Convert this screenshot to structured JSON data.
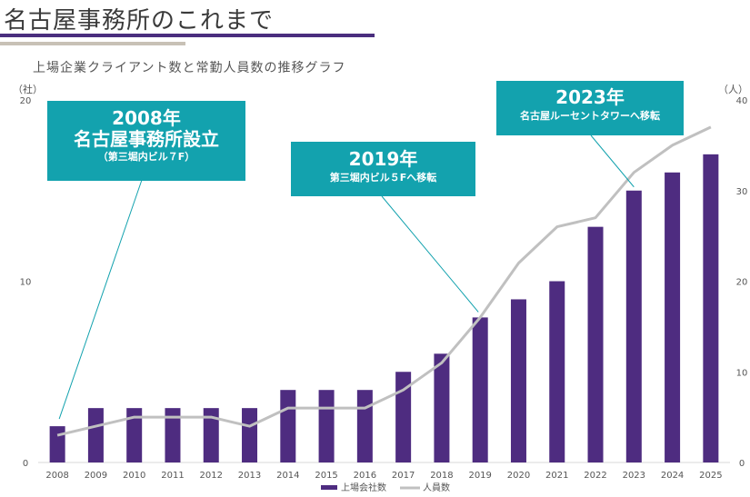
{
  "page": {
    "title": "名古屋事務所のこれまで",
    "subtitle": "上場企業クライアント数と常勤人員数の推移グラフ",
    "left_unit": "（社）",
    "right_unit": "（人）"
  },
  "annotations": [
    {
      "year": "2008年",
      "line1": "名古屋事務所設立",
      "line2": "（第三堀内ビル７F）"
    },
    {
      "year": "2019年",
      "line1": "第三堀内ビル５Fへ移転",
      "line2": ""
    },
    {
      "year": "2023年",
      "line1": "名古屋ルーセントタワーへ移転",
      "line2": ""
    }
  ],
  "colors": {
    "bar": "#4e2c80",
    "line": "#c0c0c0",
    "annotation_bg": "#13a2ae",
    "annotation_line": "#13a2ae",
    "title_bar": "#4a2e7e",
    "title_bar_sub": "#c8c1b6"
  },
  "chart_data": {
    "type": "bar",
    "categories": [
      "2008",
      "2009",
      "2010",
      "2011",
      "2012",
      "2013",
      "2014",
      "2015",
      "2016",
      "2017",
      "2018",
      "2019",
      "2020",
      "2021",
      "2022",
      "2023",
      "2024",
      "2025"
    ],
    "series": [
      {
        "name": "上場会社数",
        "type": "bar",
        "axis": "left",
        "values": [
          2,
          3,
          3,
          3,
          3,
          3,
          4,
          4,
          4,
          5,
          6,
          8,
          9,
          10,
          13,
          15,
          16,
          17
        ]
      },
      {
        "name": "人員数",
        "type": "line",
        "axis": "right",
        "values": [
          3,
          4,
          5,
          5,
          5,
          4,
          6,
          6,
          6,
          8,
          11,
          16,
          22,
          26,
          27,
          32,
          35,
          37
        ]
      }
    ],
    "left_axis": {
      "ylim": [
        0,
        20
      ],
      "ticks": [
        0,
        10,
        20
      ],
      "unit": "（社）"
    },
    "right_axis": {
      "ylim": [
        0,
        40
      ],
      "ticks": [
        0,
        10,
        20,
        30,
        40
      ],
      "unit": "（人）"
    },
    "legend": {
      "placement": "bottom-center",
      "entries": [
        "上場会社数",
        "人員数"
      ]
    },
    "grid": false
  }
}
